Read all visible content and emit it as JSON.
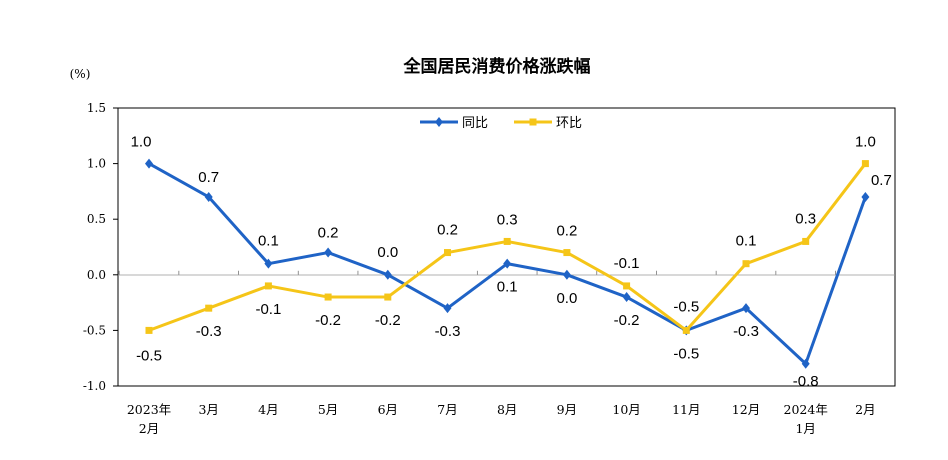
{
  "chart_data": {
    "type": "line",
    "title": "全国居民消费价格涨跌幅",
    "unit": "(%)",
    "categories": [
      [
        "2023年",
        "2月"
      ],
      [
        "3月"
      ],
      [
        "4月"
      ],
      [
        "5月"
      ],
      [
        "6月"
      ],
      [
        "7月"
      ],
      [
        "8月"
      ],
      [
        "9月"
      ],
      [
        "10月"
      ],
      [
        "11月"
      ],
      [
        "12月"
      ],
      [
        "2024年",
        "1月"
      ],
      [
        "2月"
      ]
    ],
    "ylim": [
      -1.0,
      1.5
    ],
    "yticks": [
      "1.5",
      "1.0",
      "0.5",
      "0.0",
      "-0.5",
      "-1.0"
    ],
    "ytick_values": [
      1.5,
      1.0,
      0.5,
      0.0,
      -0.5,
      -1.0
    ],
    "grid": false,
    "legend_position": "top-center",
    "series": [
      {
        "name": "同比",
        "color": "#1f63c6",
        "marker": "diamond",
        "values": [
          1.0,
          0.7,
          0.1,
          0.2,
          0.0,
          -0.3,
          0.1,
          0.0,
          -0.2,
          -0.5,
          -0.3,
          -0.8,
          0.7
        ],
        "labels": [
          "1.0",
          "0.7",
          "0.1",
          "0.2",
          "0.0",
          "-0.3",
          "0.1",
          "0.0",
          "-0.2",
          "-0.5",
          "-0.3",
          "-0.8",
          "0.7"
        ]
      },
      {
        "name": "环比",
        "color": "#f5c518",
        "marker": "square",
        "values": [
          -0.5,
          -0.3,
          -0.1,
          -0.2,
          -0.2,
          0.2,
          0.3,
          0.2,
          -0.1,
          -0.5,
          0.1,
          0.3,
          1.0
        ],
        "labels": [
          "-0.5",
          "-0.3",
          "-0.1",
          "-0.2",
          "-0.2",
          "0.2",
          "0.3",
          "0.2",
          "-0.1",
          "-0.5",
          "0.1",
          "0.3",
          "1.0"
        ]
      }
    ]
  }
}
